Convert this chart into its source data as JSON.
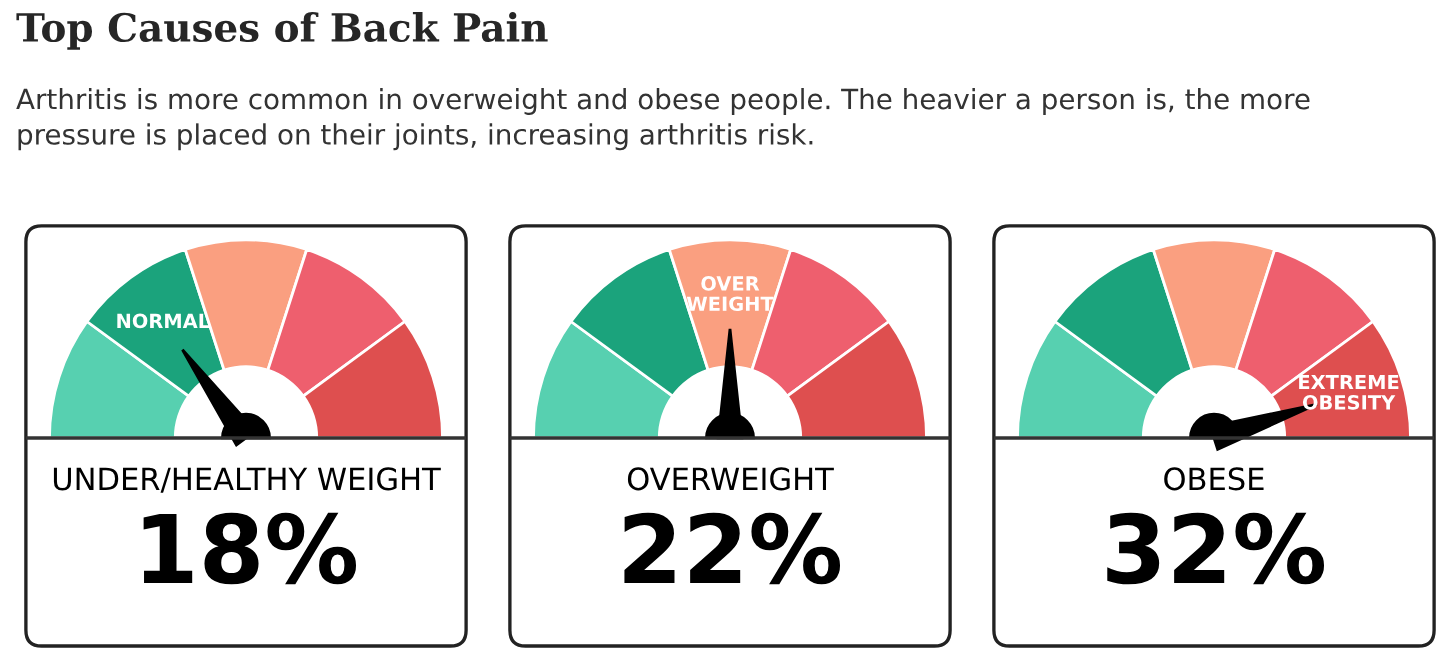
{
  "chart_data": [
    {
      "type": "donut",
      "title": "Top Causes of Back Pain",
      "subtitle": "Arthritis is more common in overweight and obese people. The heavier a person is, the more pressure is placed on their joints, increasing arthritis risk.",
      "categories": [
        null,
        "NORMAL",
        null,
        null,
        null
      ],
      "values": [
        20,
        20,
        20,
        20,
        20
      ],
      "colors": [
        "#57d0b0",
        "#1ba37c",
        "#fa9f80",
        "#ee5f6e",
        "#de4f4f"
      ],
      "needle": "NORMAL",
      "xlabel": "UNDER/HEALTHY WEIGHT",
      "annotations": [
        "18%"
      ]
    },
    {
      "type": "donut",
      "categories": [
        null,
        null,
        "OVER\nWEIGHT",
        null,
        null
      ],
      "values": [
        20,
        20,
        20,
        20,
        20
      ],
      "colors": [
        "#57d0b0",
        "#1ba37c",
        "#fa9f80",
        "#ee5f6e",
        "#de4f4f"
      ],
      "needle": "OVER\nWEIGHT",
      "xlabel": "OVERWEIGHT",
      "annotations": [
        "22%"
      ]
    },
    {
      "type": "donut",
      "categories": [
        null,
        null,
        null,
        null,
        "EXTREME\nOBESITY"
      ],
      "values": [
        20,
        20,
        20,
        20,
        20
      ],
      "colors": [
        "#57d0b0",
        "#1ba37c",
        "#fa9f80",
        "#ee5f6e",
        "#de4f4f"
      ],
      "needle": "EXTREME\nOBESITY",
      "xlabel": "OBESE",
      "annotations": [
        "32%"
      ]
    }
  ]
}
